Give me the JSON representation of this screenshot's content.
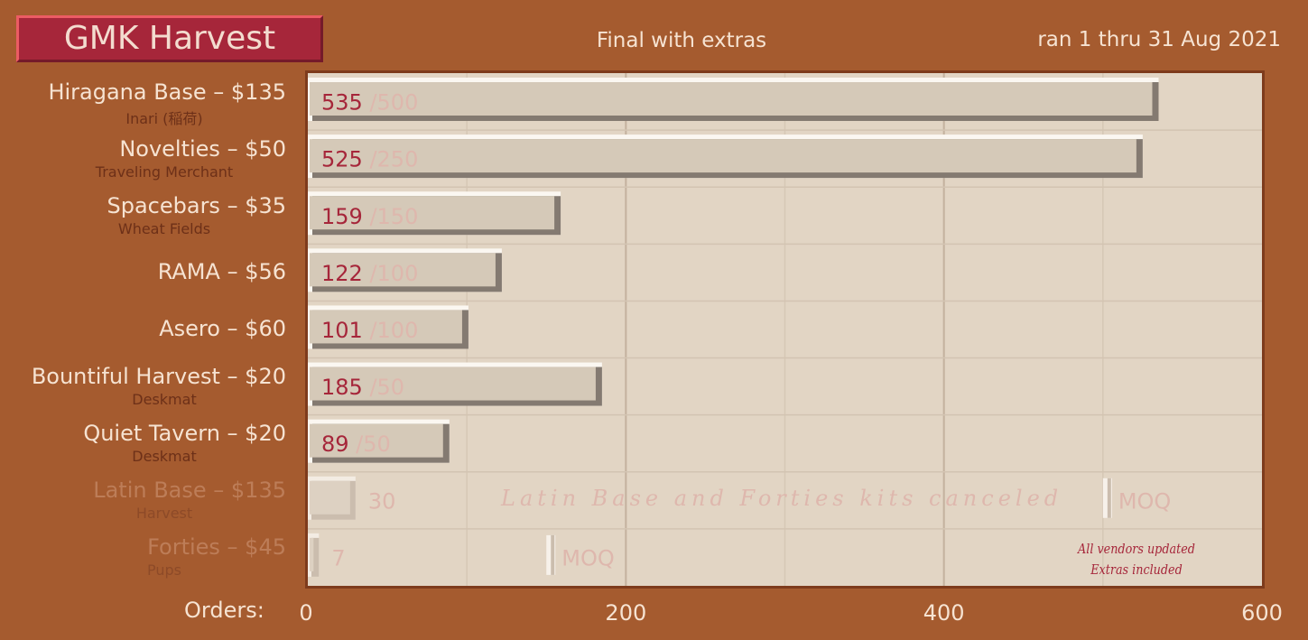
{
  "header": {
    "title": "GMK Harvest",
    "subtitle": "Final with extras",
    "date_range": "ran 1 thru 31 Aug 2021"
  },
  "axis": {
    "orders_label": "Orders:"
  },
  "notes": {
    "canceled": "Latin Base and Forties kits canceled",
    "moq_label": "MOQ",
    "vendors_updated": "All vendors updated",
    "extras_included": "Extras included"
  },
  "colors": {
    "background": "#a55b2f",
    "plot": "#e2d5c4",
    "bar": "#d5c9b8",
    "value_text": "#a6263a",
    "moq_text": "#deb7ad",
    "title_box": "#a6263a"
  },
  "chart_data": {
    "type": "bar",
    "orientation": "horizontal",
    "title": "GMK Harvest",
    "subtitle": "Final with extras",
    "xlabel": "Orders:",
    "xlim": [
      0,
      600
    ],
    "xticks": [
      0,
      200,
      400,
      600
    ],
    "grid": true,
    "categories": [
      {
        "name": "Hiragana Base – $135",
        "sub": "Inari (稲荷)",
        "orders": 535,
        "moq": 500,
        "canceled": false
      },
      {
        "name": "Novelties – $50",
        "sub": "Traveling Merchant",
        "orders": 525,
        "moq": 250,
        "canceled": false
      },
      {
        "name": "Spacebars – $35",
        "sub": "Wheat Fields",
        "orders": 159,
        "moq": 150,
        "canceled": false
      },
      {
        "name": "RAMA – $56",
        "sub": "",
        "orders": 122,
        "moq": 100,
        "canceled": false
      },
      {
        "name": "Asero – $60",
        "sub": "",
        "orders": 101,
        "moq": 100,
        "canceled": false
      },
      {
        "name": "Bountiful Harvest – $20",
        "sub": "Deskmat",
        "orders": 185,
        "moq": 50,
        "canceled": false
      },
      {
        "name": "Quiet Tavern – $20",
        "sub": "Deskmat",
        "orders": 89,
        "moq": 50,
        "canceled": false
      },
      {
        "name": "Latin Base – $135",
        "sub": "Harvest",
        "orders": 30,
        "moq": 500,
        "canceled": true
      },
      {
        "name": "Forties – $45",
        "sub": "Pups",
        "orders": 7,
        "moq": 150,
        "canceled": true
      }
    ]
  }
}
